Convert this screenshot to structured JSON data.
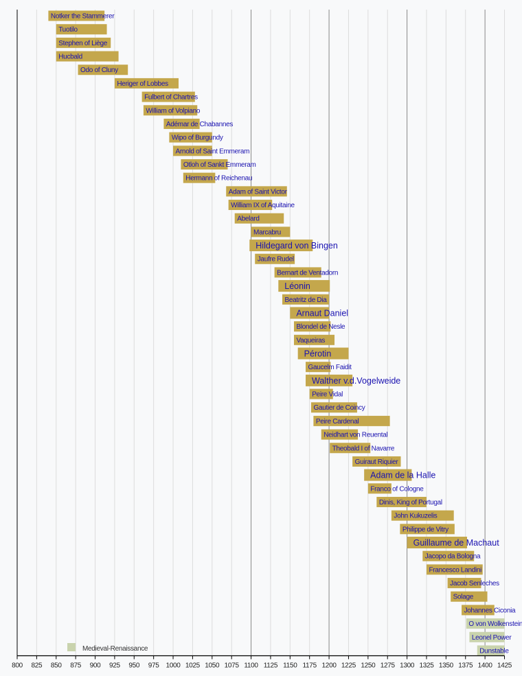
{
  "chart_data": {
    "type": "bar",
    "orientation": "horizontal-timeline",
    "xlim": [
      800,
      1425
    ],
    "x_ticks": [
      800,
      825,
      850,
      875,
      900,
      925,
      950,
      975,
      1000,
      1025,
      1050,
      1075,
      1100,
      1125,
      1150,
      1175,
      1200,
      1225,
      1250,
      1275,
      1300,
      1325,
      1350,
      1375,
      1400,
      1425
    ],
    "major_gridlines": [
      1100,
      1200,
      1300,
      1400
    ],
    "grid": true,
    "legend": {
      "position": "bottom-left",
      "entries": [
        {
          "label": "Medieval-Renaissance",
          "color": "#c9d3ad"
        }
      ]
    },
    "colors": {
      "Medieval": "#c4a74c",
      "Medieval-Renaissance": "#c9d3ad",
      "label": "#1a12b0"
    },
    "items": [
      {
        "name": "Notker the Stammerer",
        "start": 840,
        "end": 912,
        "period": "Medieval",
        "emphasized": false
      },
      {
        "name": "Tuotilo",
        "start": 850,
        "end": 915,
        "period": "Medieval",
        "emphasized": false
      },
      {
        "name": "Stephen of Liège",
        "start": 850,
        "end": 920,
        "period": "Medieval",
        "emphasized": false
      },
      {
        "name": "Hucbald",
        "start": 850,
        "end": 930,
        "period": "Medieval",
        "emphasized": false
      },
      {
        "name": "Odo of Cluny",
        "start": 878,
        "end": 942,
        "period": "Medieval",
        "emphasized": false
      },
      {
        "name": "Heriger of Lobbes",
        "start": 925,
        "end": 1007,
        "period": "Medieval",
        "emphasized": false
      },
      {
        "name": "Fulbert of Chartres",
        "start": 960,
        "end": 1028,
        "period": "Medieval",
        "emphasized": false
      },
      {
        "name": "William of Volpiano",
        "start": 962,
        "end": 1031,
        "period": "Medieval",
        "emphasized": false
      },
      {
        "name": "Adémar de Chabannes",
        "start": 988,
        "end": 1034,
        "period": "Medieval",
        "emphasized": false
      },
      {
        "name": "Wipo of Burgundy",
        "start": 995,
        "end": 1050,
        "period": "Medieval",
        "emphasized": false
      },
      {
        "name": "Arnold of Saint Emmeram",
        "start": 1000,
        "end": 1050,
        "period": "Medieval",
        "emphasized": false
      },
      {
        "name": "Otloh of Sankt Emmeram",
        "start": 1010,
        "end": 1070,
        "period": "Medieval",
        "emphasized": false
      },
      {
        "name": "Hermann of Reichenau",
        "start": 1013,
        "end": 1054,
        "period": "Medieval",
        "emphasized": false
      },
      {
        "name": "Adam of Saint Victor",
        "start": 1068,
        "end": 1146,
        "period": "Medieval",
        "emphasized": false
      },
      {
        "name": "William IX of Aquitaine",
        "start": 1071,
        "end": 1127,
        "period": "Medieval",
        "emphasized": false
      },
      {
        "name": "Abelard",
        "start": 1079,
        "end": 1142,
        "period": "Medieval",
        "emphasized": false
      },
      {
        "name": "Marcabru",
        "start": 1100,
        "end": 1150,
        "period": "Medieval",
        "emphasized": false
      },
      {
        "name": "Hildegard von Bingen",
        "start": 1098,
        "end": 1179,
        "period": "Medieval",
        "emphasized": true
      },
      {
        "name": "Jaufre Rudel",
        "start": 1105,
        "end": 1156,
        "period": "Medieval",
        "emphasized": false
      },
      {
        "name": "Bernart de Ventadorn",
        "start": 1130,
        "end": 1190,
        "period": "Medieval",
        "emphasized": false
      },
      {
        "name": "Léonin",
        "start": 1135,
        "end": 1201,
        "period": "Medieval",
        "emphasized": true
      },
      {
        "name": "Beatritz de Dia",
        "start": 1140,
        "end": 1200,
        "period": "Medieval",
        "emphasized": false
      },
      {
        "name": "Arnaut Daniel",
        "start": 1150,
        "end": 1200,
        "period": "Medieval",
        "emphasized": true
      },
      {
        "name": "Blondel de Nesle",
        "start": 1155,
        "end": 1202,
        "period": "Medieval",
        "emphasized": false
      },
      {
        "name": "Vaqueiras",
        "start": 1155,
        "end": 1207,
        "period": "Medieval",
        "emphasized": false
      },
      {
        "name": "Pérotin",
        "start": 1160,
        "end": 1225,
        "period": "Medieval",
        "emphasized": true
      },
      {
        "name": "Gaucelm Faidit",
        "start": 1170,
        "end": 1202,
        "period": "Medieval",
        "emphasized": false
      },
      {
        "name": "Walther v.d.Vogelweide",
        "start": 1170,
        "end": 1230,
        "period": "Medieval",
        "emphasized": true
      },
      {
        "name": "Peire Vidal",
        "start": 1175,
        "end": 1205,
        "period": "Medieval",
        "emphasized": false
      },
      {
        "name": "Gautier de Coincy",
        "start": 1177,
        "end": 1236,
        "period": "Medieval",
        "emphasized": false
      },
      {
        "name": "Peire Cardenal",
        "start": 1180,
        "end": 1278,
        "period": "Medieval",
        "emphasized": false
      },
      {
        "name": "Neidhart von Reuental",
        "start": 1190,
        "end": 1237,
        "period": "Medieval",
        "emphasized": false
      },
      {
        "name": "Theobald I of Navarre",
        "start": 1201,
        "end": 1253,
        "period": "Medieval",
        "emphasized": false
      },
      {
        "name": "Guiraut Riquier",
        "start": 1230,
        "end": 1292,
        "period": "Medieval",
        "emphasized": false
      },
      {
        "name": "Adam de la Halle",
        "start": 1245,
        "end": 1306,
        "period": "Medieval",
        "emphasized": true
      },
      {
        "name": "Franco of Cologne",
        "start": 1250,
        "end": 1280,
        "period": "Medieval",
        "emphasized": false
      },
      {
        "name": "Dinis, King of Portugal",
        "start": 1261,
        "end": 1325,
        "period": "Medieval",
        "emphasized": false
      },
      {
        "name": "John Kukuzelis",
        "start": 1280,
        "end": 1360,
        "period": "Medieval",
        "emphasized": false
      },
      {
        "name": "Philippe de Vitry",
        "start": 1291,
        "end": 1361,
        "period": "Medieval",
        "emphasized": false
      },
      {
        "name": "Guillaume de Machaut",
        "start": 1300,
        "end": 1377,
        "period": "Medieval",
        "emphasized": true
      },
      {
        "name": "Jacopo da Bologna",
        "start": 1320,
        "end": 1386,
        "period": "Medieval",
        "emphasized": false
      },
      {
        "name": "Francesco Landini",
        "start": 1325,
        "end": 1397,
        "period": "Medieval",
        "emphasized": false
      },
      {
        "name": "Jacob Senleches",
        "start": 1352,
        "end": 1395,
        "period": "Medieval",
        "emphasized": false
      },
      {
        "name": "Solage",
        "start": 1356,
        "end": 1403,
        "period": "Medieval",
        "emphasized": false
      },
      {
        "name": "Johannes Ciconia",
        "start": 1370,
        "end": 1412,
        "period": "Medieval",
        "emphasized": false
      },
      {
        "name": "O von Wolkenstein",
        "start": 1376,
        "end": 1425,
        "period": "Medieval-Renaissance",
        "emphasized": false
      },
      {
        "name": "Leonel Power",
        "start": 1380,
        "end": 1425,
        "period": "Medieval-Renaissance",
        "emphasized": false
      },
      {
        "name": "Dunstable",
        "start": 1390,
        "end": 1425,
        "period": "Medieval-Renaissance",
        "emphasized": false
      }
    ]
  }
}
